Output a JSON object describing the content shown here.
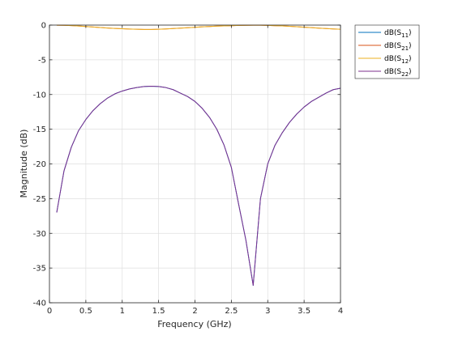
{
  "chart_data": {
    "type": "line",
    "title": "",
    "xlabel": "Frequency (GHz)",
    "ylabel": "Magnitude (dB)",
    "xlim": [
      0,
      4
    ],
    "ylim": [
      -40,
      0
    ],
    "xticks": [
      0,
      0.5,
      1,
      1.5,
      2,
      2.5,
      3,
      3.5,
      4
    ],
    "xtick_labels": [
      "0",
      "0.5",
      "1",
      "1.5",
      "2",
      "2.5",
      "3",
      "3.5",
      "4"
    ],
    "yticks": [
      0,
      -5,
      -10,
      -15,
      -20,
      -25,
      -30,
      -35,
      -40
    ],
    "ytick_labels": [
      "0",
      "-5",
      "-10",
      "-15",
      "-20",
      "-25",
      "-30",
      "-35",
      "-40"
    ],
    "grid": true,
    "legend_position": "outside-top-right",
    "x": [
      0.1,
      0.2,
      0.3,
      0.4,
      0.5,
      0.6,
      0.7,
      0.8,
      0.9,
      1.0,
      1.1,
      1.2,
      1.3,
      1.4,
      1.5,
      1.6,
      1.7,
      1.8,
      1.9,
      2.0,
      2.1,
      2.2,
      2.3,
      2.4,
      2.5,
      2.6,
      2.7,
      2.8,
      2.9,
      3.0,
      3.1,
      3.2,
      3.3,
      3.4,
      3.5,
      3.6,
      3.7,
      3.8,
      3.9,
      4.0
    ],
    "series": [
      {
        "name": "dB(S11)",
        "legend_base": "dB(S",
        "legend_sub": "11",
        "legend_close": ")",
        "color": "#0072BD",
        "values": [
          -27.0,
          -21.0,
          -17.6,
          -15.2,
          -13.6,
          -12.3,
          -11.3,
          -10.5,
          -9.9,
          -9.5,
          -9.2,
          -9.0,
          -8.85,
          -8.8,
          -8.85,
          -9.0,
          -9.3,
          -9.8,
          -10.3,
          -11.0,
          -12.0,
          -13.3,
          -15.0,
          -17.3,
          -20.5,
          -25.8,
          -31.0,
          -37.5,
          -25.0,
          -20.0,
          -17.3,
          -15.5,
          -14.0,
          -12.8,
          -11.8,
          -11.0,
          -10.4,
          -9.8,
          -9.3,
          -9.1
        ]
      },
      {
        "name": "dB(S21)",
        "legend_base": "dB(S",
        "legend_sub": "21",
        "legend_close": ")",
        "color": "#D95319",
        "values": [
          -0.01,
          -0.03,
          -0.07,
          -0.13,
          -0.2,
          -0.27,
          -0.35,
          -0.42,
          -0.48,
          -0.53,
          -0.57,
          -0.6,
          -0.62,
          -0.62,
          -0.6,
          -0.56,
          -0.5,
          -0.44,
          -0.38,
          -0.32,
          -0.25,
          -0.2,
          -0.15,
          -0.11,
          -0.08,
          -0.05,
          -0.03,
          -0.01,
          -0.02,
          -0.05,
          -0.08,
          -0.12,
          -0.17,
          -0.23,
          -0.3,
          -0.37,
          -0.44,
          -0.5,
          -0.55,
          -0.6
        ]
      },
      {
        "name": "dB(S12)",
        "legend_base": "dB(S",
        "legend_sub": "12",
        "legend_close": ")",
        "color": "#EDB120",
        "values": [
          -0.01,
          -0.03,
          -0.07,
          -0.13,
          -0.2,
          -0.27,
          -0.35,
          -0.42,
          -0.48,
          -0.53,
          -0.57,
          -0.6,
          -0.62,
          -0.62,
          -0.6,
          -0.56,
          -0.5,
          -0.44,
          -0.38,
          -0.32,
          -0.25,
          -0.2,
          -0.15,
          -0.11,
          -0.08,
          -0.05,
          -0.03,
          -0.01,
          -0.02,
          -0.05,
          -0.08,
          -0.12,
          -0.17,
          -0.23,
          -0.3,
          -0.37,
          -0.44,
          -0.5,
          -0.55,
          -0.6
        ]
      },
      {
        "name": "dB(S22)",
        "legend_base": "dB(S",
        "legend_sub": "22",
        "legend_close": ")",
        "color": "#7E2F8E",
        "values": [
          -27.0,
          -21.0,
          -17.6,
          -15.2,
          -13.6,
          -12.3,
          -11.3,
          -10.5,
          -9.9,
          -9.5,
          -9.2,
          -9.0,
          -8.85,
          -8.8,
          -8.85,
          -9.0,
          -9.3,
          -9.8,
          -10.3,
          -11.0,
          -12.0,
          -13.3,
          -15.0,
          -17.3,
          -20.5,
          -25.8,
          -31.0,
          -37.5,
          -25.0,
          -20.0,
          -17.3,
          -15.5,
          -14.0,
          -12.8,
          -11.8,
          -11.0,
          -10.4,
          -9.8,
          -9.3,
          -9.1
        ]
      }
    ]
  }
}
